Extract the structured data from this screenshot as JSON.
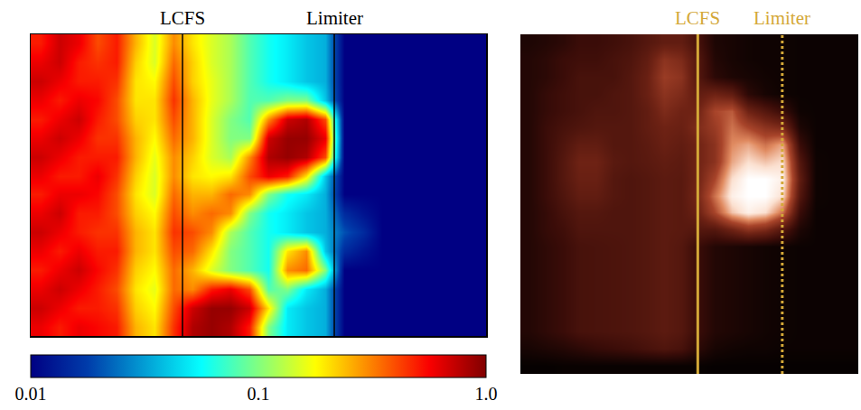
{
  "chart_data": [
    {
      "type": "heatmap",
      "color": "jet",
      "log": true,
      "tick_labels": false,
      "colorbar": {
        "range": [
          0.01,
          1
        ],
        "ticks": [
          0.01,
          0.1,
          {
            "value": 1,
            "label": "1.0"
          }
        ]
      },
      "vlines": [
        {
          "name": "LCFS",
          "x": 7.5,
          "color": "#000000",
          "line_style": "solid"
        },
        {
          "name": "Limiter",
          "x": 15.5,
          "color": "#000000",
          "line_style": "solid"
        }
      ],
      "cells": [
        [
          0.5,
          0.7,
          0.6,
          0.4,
          0.5,
          0.25,
          0.15,
          0.3,
          0.2,
          0.15,
          0.12,
          0.08,
          0.06,
          0.05,
          0.04,
          0.035,
          0.01,
          0.01,
          0.01,
          0.01,
          0.01,
          0.01,
          0.01,
          0.01
        ],
        [
          0.6,
          0.7,
          0.5,
          0.45,
          0.5,
          0.22,
          0.15,
          0.35,
          0.22,
          0.15,
          0.12,
          0.08,
          0.06,
          0.05,
          0.04,
          0.035,
          0.01,
          0.01,
          0.01,
          0.01,
          0.01,
          0.01,
          0.01,
          0.01
        ],
        [
          0.7,
          0.6,
          0.5,
          0.5,
          0.45,
          0.2,
          0.18,
          0.4,
          0.22,
          0.16,
          0.12,
          0.08,
          0.06,
          0.05,
          0.04,
          0.035,
          0.01,
          0.01,
          0.01,
          0.01,
          0.01,
          0.01,
          0.01,
          0.01
        ],
        [
          0.6,
          0.5,
          0.6,
          0.55,
          0.4,
          0.2,
          0.2,
          0.45,
          0.25,
          0.16,
          0.12,
          0.08,
          0.08,
          0.1,
          0.1,
          0.04,
          0.01,
          0.01,
          0.01,
          0.01,
          0.01,
          0.01,
          0.01,
          0.01
        ],
        [
          0.5,
          0.6,
          0.7,
          0.5,
          0.4,
          0.22,
          0.2,
          0.4,
          0.25,
          0.15,
          0.1,
          0.08,
          0.3,
          0.7,
          0.8,
          0.4,
          0.01,
          0.01,
          0.01,
          0.01,
          0.01,
          0.01,
          0.01,
          0.01
        ],
        [
          0.6,
          0.7,
          0.6,
          0.45,
          0.45,
          0.25,
          0.18,
          0.35,
          0.25,
          0.15,
          0.1,
          0.1,
          0.7,
          0.9,
          0.9,
          0.6,
          0.01,
          0.01,
          0.01,
          0.01,
          0.01,
          0.01,
          0.01,
          0.01
        ],
        [
          0.7,
          0.6,
          0.5,
          0.5,
          0.5,
          0.25,
          0.16,
          0.3,
          0.22,
          0.15,
          0.12,
          0.3,
          0.8,
          0.9,
          0.8,
          0.4,
          0.01,
          0.01,
          0.01,
          0.01,
          0.01,
          0.01,
          0.01,
          0.01
        ],
        [
          0.6,
          0.5,
          0.5,
          0.6,
          0.45,
          0.22,
          0.15,
          0.3,
          0.2,
          0.18,
          0.2,
          0.4,
          0.6,
          0.5,
          0.2,
          0.04,
          0.01,
          0.01,
          0.01,
          0.01,
          0.01,
          0.01,
          0.01,
          0.01
        ],
        [
          0.5,
          0.6,
          0.6,
          0.55,
          0.4,
          0.2,
          0.15,
          0.35,
          0.25,
          0.25,
          0.35,
          0.3,
          0.1,
          0.06,
          0.05,
          0.035,
          0.01,
          0.01,
          0.01,
          0.01,
          0.01,
          0.01,
          0.01,
          0.01
        ],
        [
          0.6,
          0.7,
          0.5,
          0.5,
          0.4,
          0.22,
          0.18,
          0.4,
          0.3,
          0.35,
          0.3,
          0.1,
          0.06,
          0.05,
          0.04,
          0.035,
          0.015,
          0.012,
          0.01,
          0.01,
          0.01,
          0.01,
          0.01,
          0.01
        ],
        [
          0.7,
          0.6,
          0.5,
          0.45,
          0.45,
          0.25,
          0.2,
          0.45,
          0.4,
          0.3,
          0.12,
          0.08,
          0.06,
          0.05,
          0.04,
          0.035,
          0.02,
          0.015,
          0.01,
          0.01,
          0.01,
          0.01,
          0.01,
          0.01
        ],
        [
          0.6,
          0.5,
          0.6,
          0.5,
          0.5,
          0.25,
          0.2,
          0.4,
          0.35,
          0.2,
          0.1,
          0.08,
          0.06,
          0.2,
          0.3,
          0.04,
          0.015,
          0.012,
          0.01,
          0.01,
          0.01,
          0.01,
          0.01,
          0.01
        ],
        [
          0.5,
          0.6,
          0.7,
          0.55,
          0.45,
          0.22,
          0.18,
          0.35,
          0.25,
          0.15,
          0.1,
          0.08,
          0.06,
          0.3,
          0.35,
          0.1,
          0.01,
          0.01,
          0.01,
          0.01,
          0.01,
          0.01,
          0.01,
          0.01
        ],
        [
          0.6,
          0.7,
          0.6,
          0.5,
          0.4,
          0.2,
          0.16,
          0.35,
          0.3,
          0.5,
          0.6,
          0.4,
          0.08,
          0.1,
          0.05,
          0.035,
          0.01,
          0.01,
          0.01,
          0.01,
          0.01,
          0.01,
          0.01,
          0.01
        ],
        [
          0.7,
          0.6,
          0.5,
          0.5,
          0.45,
          0.22,
          0.18,
          0.4,
          0.7,
          0.9,
          0.9,
          0.7,
          0.2,
          0.05,
          0.04,
          0.035,
          0.01,
          0.01,
          0.01,
          0.01,
          0.01,
          0.01,
          0.01,
          0.01
        ],
        [
          0.6,
          0.5,
          0.6,
          0.55,
          0.5,
          0.25,
          0.2,
          0.45,
          0.8,
          0.9,
          0.8,
          0.5,
          0.1,
          0.05,
          0.04,
          0.035,
          0.01,
          0.01,
          0.01,
          0.01,
          0.01,
          0.01,
          0.01,
          0.01
        ]
      ]
    },
    {
      "type": "heatmap",
      "color": "hot",
      "tick_labels": false,
      "zlim": [
        0,
        1
      ],
      "vlines": [
        {
          "name": "LCFS",
          "x": 10,
          "color": "#d4a838",
          "line_style": "solid"
        },
        {
          "name": "Limiter",
          "x": 15,
          "color": "#d4a838",
          "line_style": "dotted"
        }
      ],
      "cells": [
        [
          0.1,
          0.12,
          0.15,
          0.2,
          0.2,
          0.22,
          0.25,
          0.3,
          0.35,
          0.35,
          0.25,
          0.1,
          0.08,
          0.06,
          0.05,
          0.05,
          0.04,
          0.04,
          0.04,
          0.04
        ],
        [
          0.12,
          0.15,
          0.2,
          0.22,
          0.22,
          0.25,
          0.28,
          0.35,
          0.5,
          0.45,
          0.3,
          0.12,
          0.08,
          0.06,
          0.05,
          0.05,
          0.04,
          0.04,
          0.04,
          0.04
        ],
        [
          0.12,
          0.15,
          0.2,
          0.25,
          0.25,
          0.25,
          0.3,
          0.38,
          0.55,
          0.5,
          0.3,
          0.15,
          0.1,
          0.08,
          0.06,
          0.05,
          0.04,
          0.04,
          0.04,
          0.04
        ],
        [
          0.12,
          0.18,
          0.22,
          0.25,
          0.25,
          0.28,
          0.3,
          0.38,
          0.5,
          0.45,
          0.35,
          0.4,
          0.35,
          0.15,
          0.08,
          0.05,
          0.04,
          0.04,
          0.04,
          0.04
        ],
        [
          0.12,
          0.18,
          0.22,
          0.25,
          0.28,
          0.28,
          0.3,
          0.35,
          0.45,
          0.4,
          0.4,
          0.6,
          0.65,
          0.4,
          0.3,
          0.2,
          0.05,
          0.04,
          0.04,
          0.04
        ],
        [
          0.12,
          0.2,
          0.25,
          0.28,
          0.3,
          0.3,
          0.3,
          0.35,
          0.4,
          0.38,
          0.45,
          0.55,
          0.7,
          0.6,
          0.5,
          0.45,
          0.1,
          0.04,
          0.04,
          0.04
        ],
        [
          0.12,
          0.2,
          0.28,
          0.35,
          0.35,
          0.3,
          0.3,
          0.33,
          0.38,
          0.35,
          0.4,
          0.5,
          0.75,
          0.8,
          0.7,
          0.8,
          0.2,
          0.04,
          0.04,
          0.04
        ],
        [
          0.12,
          0.2,
          0.3,
          0.4,
          0.4,
          0.32,
          0.3,
          0.32,
          0.35,
          0.33,
          0.4,
          0.5,
          0.8,
          0.9,
          0.85,
          0.9,
          0.3,
          0.05,
          0.04,
          0.04
        ],
        [
          0.12,
          0.2,
          0.3,
          0.38,
          0.38,
          0.3,
          0.28,
          0.3,
          0.33,
          0.32,
          0.4,
          0.6,
          0.9,
          1.0,
          1.0,
          0.95,
          0.35,
          0.05,
          0.04,
          0.04
        ],
        [
          0.12,
          0.2,
          0.28,
          0.35,
          0.35,
          0.3,
          0.28,
          0.3,
          0.33,
          0.32,
          0.42,
          0.7,
          0.95,
          1.0,
          1.0,
          0.9,
          0.3,
          0.05,
          0.04,
          0.04
        ],
        [
          0.12,
          0.18,
          0.25,
          0.3,
          0.3,
          0.28,
          0.28,
          0.3,
          0.33,
          0.32,
          0.38,
          0.6,
          0.85,
          0.95,
          0.9,
          0.7,
          0.2,
          0.04,
          0.04,
          0.04
        ],
        [
          0.12,
          0.18,
          0.22,
          0.28,
          0.28,
          0.28,
          0.28,
          0.3,
          0.33,
          0.32,
          0.3,
          0.3,
          0.4,
          0.5,
          0.45,
          0.3,
          0.1,
          0.04,
          0.04,
          0.04
        ],
        [
          0.12,
          0.16,
          0.2,
          0.25,
          0.26,
          0.27,
          0.28,
          0.3,
          0.33,
          0.3,
          0.2,
          0.12,
          0.1,
          0.08,
          0.06,
          0.05,
          0.04,
          0.04,
          0.04,
          0.04
        ],
        [
          0.12,
          0.16,
          0.2,
          0.25,
          0.26,
          0.27,
          0.28,
          0.3,
          0.33,
          0.3,
          0.2,
          0.12,
          0.1,
          0.08,
          0.06,
          0.05,
          0.04,
          0.04,
          0.04,
          0.04
        ],
        [
          0.12,
          0.16,
          0.2,
          0.25,
          0.26,
          0.27,
          0.28,
          0.3,
          0.33,
          0.3,
          0.2,
          0.12,
          0.1,
          0.08,
          0.06,
          0.05,
          0.04,
          0.04,
          0.04,
          0.04
        ],
        [
          0.12,
          0.16,
          0.2,
          0.25,
          0.26,
          0.27,
          0.28,
          0.3,
          0.33,
          0.3,
          0.2,
          0.12,
          0.1,
          0.08,
          0.06,
          0.05,
          0.04,
          0.04,
          0.04,
          0.04
        ],
        [
          0.12,
          0.16,
          0.2,
          0.25,
          0.26,
          0.27,
          0.28,
          0.3,
          0.33,
          0.3,
          0.2,
          0.12,
          0.1,
          0.08,
          0.06,
          0.05,
          0.04,
          0.04,
          0.04,
          0.04
        ],
        [
          0.12,
          0.16,
          0.2,
          0.25,
          0.26,
          0.27,
          0.28,
          0.3,
          0.33,
          0.3,
          0.2,
          0.12,
          0.1,
          0.08,
          0.06,
          0.05,
          0.04,
          0.04,
          0.04,
          0.04
        ],
        [
          0.08,
          0.1,
          0.12,
          0.15,
          0.18,
          0.2,
          0.22,
          0.25,
          0.28,
          0.25,
          0.15,
          0.08,
          0.06,
          0.05,
          0.05,
          0.04,
          0.04,
          0.04,
          0.04,
          0.04
        ],
        [
          0.02,
          0.02,
          0.03,
          0.03,
          0.03,
          0.03,
          0.03,
          0.03,
          0.03,
          0.03,
          0.03,
          0.02,
          0.02,
          0.02,
          0.02,
          0.02,
          0.02,
          0.02,
          0.02,
          0.02
        ]
      ]
    }
  ]
}
